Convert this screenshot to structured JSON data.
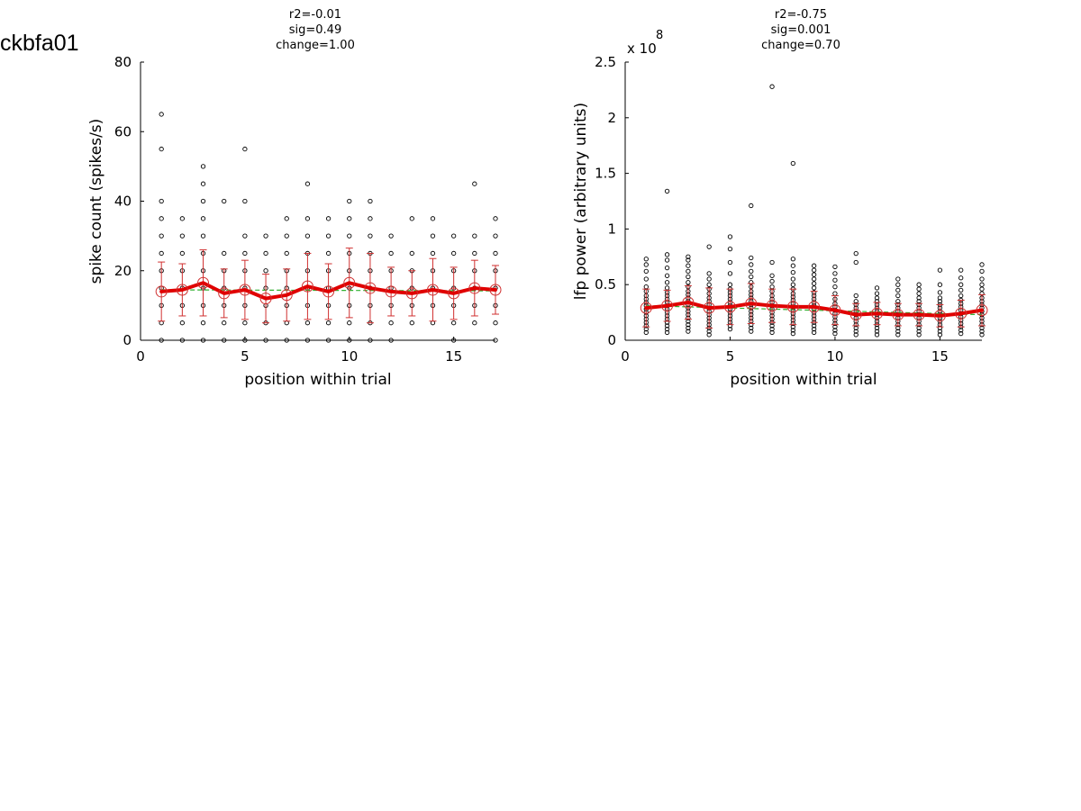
{
  "figure_title": "ckbfa01",
  "chart_data": [
    {
      "type": "scatter",
      "stats": [
        "r2=-0.01",
        "sig=0.49",
        "change=1.00"
      ],
      "xlabel": "position within trial",
      "ylabel": "spike count (spikes/s)",
      "xlim": [
        0,
        17
      ],
      "ylim": [
        0,
        80
      ],
      "xticks": [
        0,
        5,
        10,
        15
      ],
      "yticks": [
        0,
        20,
        40,
        60,
        80
      ],
      "xtick_labels": [
        "0",
        "5",
        "10",
        "15"
      ],
      "ytick_labels": [
        "0",
        "20",
        "40",
        "60",
        "80"
      ],
      "exponent_label": "",
      "raw_points": [
        {
          "x": 1,
          "ys": [
            0,
            5,
            10,
            15,
            20,
            25,
            30,
            35,
            40,
            55,
            65
          ]
        },
        {
          "x": 2,
          "ys": [
            0,
            5,
            10,
            15,
            20,
            25,
            30,
            35
          ]
        },
        {
          "x": 3,
          "ys": [
            0,
            5,
            10,
            15,
            20,
            25,
            30,
            35,
            40,
            45,
            50
          ]
        },
        {
          "x": 4,
          "ys": [
            0,
            5,
            10,
            15,
            20,
            25,
            40
          ]
        },
        {
          "x": 5,
          "ys": [
            0,
            5,
            10,
            15,
            20,
            25,
            30,
            40,
            55
          ]
        },
        {
          "x": 6,
          "ys": [
            0,
            5,
            10,
            15,
            20,
            25,
            30
          ]
        },
        {
          "x": 7,
          "ys": [
            0,
            5,
            10,
            15,
            20,
            25,
            30,
            35
          ]
        },
        {
          "x": 8,
          "ys": [
            0,
            5,
            10,
            15,
            20,
            25,
            30,
            35,
            45
          ]
        },
        {
          "x": 9,
          "ys": [
            0,
            5,
            10,
            15,
            20,
            25,
            30,
            35
          ]
        },
        {
          "x": 10,
          "ys": [
            0,
            5,
            10,
            15,
            20,
            25,
            30,
            35,
            40
          ]
        },
        {
          "x": 11,
          "ys": [
            0,
            5,
            10,
            15,
            20,
            25,
            30,
            35,
            40
          ]
        },
        {
          "x": 12,
          "ys": [
            0,
            5,
            10,
            15,
            20,
            25,
            30
          ]
        },
        {
          "x": 13,
          "ys": [
            5,
            10,
            15,
            20,
            25,
            35
          ]
        },
        {
          "x": 14,
          "ys": [
            5,
            10,
            15,
            20,
            25,
            30,
            35
          ]
        },
        {
          "x": 15,
          "ys": [
            0,
            5,
            10,
            15,
            20,
            25,
            30
          ]
        },
        {
          "x": 16,
          "ys": [
            5,
            10,
            15,
            20,
            25,
            30,
            45
          ]
        },
        {
          "x": 17,
          "ys": [
            0,
            5,
            10,
            15,
            20,
            25,
            30,
            35
          ]
        }
      ],
      "mean_series": {
        "x": [
          1,
          2,
          3,
          4,
          5,
          6,
          7,
          8,
          9,
          10,
          11,
          12,
          13,
          14,
          15,
          16,
          17
        ],
        "y": [
          14,
          14.5,
          16.5,
          13.5,
          14.5,
          12,
          13,
          15.5,
          14,
          16.5,
          15,
          14,
          13.5,
          14.5,
          13.5,
          15,
          14.5
        ],
        "err": [
          8.5,
          7.5,
          9.5,
          7,
          8.5,
          7,
          7.5,
          9.5,
          8,
          10,
          10,
          7,
          6.5,
          9,
          7.5,
          8,
          7
        ]
      },
      "fit_line": {
        "x": [
          1,
          17
        ],
        "y": [
          14.5,
          14.2
        ]
      },
      "colors": {
        "points": "#000000",
        "mean": "#e00000",
        "errorbar": "#d03030",
        "fit": "#30b030"
      }
    },
    {
      "type": "scatter",
      "stats": [
        "r2=-0.75",
        "sig=0.001",
        "change=0.70"
      ],
      "xlabel": "position within trial",
      "ylabel": "lfp power (arbitrary units)",
      "xlim": [
        0,
        17
      ],
      "ylim": [
        0,
        2.5
      ],
      "xticks": [
        0,
        5,
        10,
        15
      ],
      "yticks": [
        0,
        0.5,
        1,
        1.5,
        2,
        2.5
      ],
      "xtick_labels": [
        "0",
        "5",
        "10",
        "15"
      ],
      "ytick_labels": [
        "0",
        "0.5",
        "1",
        "1.5",
        "2",
        "2.5"
      ],
      "exponent_label": "x 10",
      "exponent_power": "8",
      "raw_points": [
        {
          "x": 1,
          "ys": [
            0.07,
            0.1,
            0.13,
            0.16,
            0.19,
            0.22,
            0.25,
            0.28,
            0.31,
            0.34,
            0.37,
            0.4,
            0.44,
            0.48,
            0.55,
            0.62,
            0.68,
            0.73
          ]
        },
        {
          "x": 2,
          "ys": [
            0.07,
            0.1,
            0.13,
            0.16,
            0.19,
            0.22,
            0.25,
            0.28,
            0.31,
            0.34,
            0.37,
            0.4,
            0.43,
            0.47,
            0.52,
            0.58,
            0.65,
            0.72,
            0.77,
            1.34
          ]
        },
        {
          "x": 3,
          "ys": [
            0.08,
            0.11,
            0.14,
            0.17,
            0.2,
            0.23,
            0.26,
            0.29,
            0.32,
            0.35,
            0.38,
            0.41,
            0.44,
            0.48,
            0.52,
            0.57,
            0.62,
            0.67,
            0.72,
            0.75
          ]
        },
        {
          "x": 4,
          "ys": [
            0.05,
            0.08,
            0.11,
            0.14,
            0.17,
            0.2,
            0.23,
            0.26,
            0.29,
            0.32,
            0.35,
            0.38,
            0.42,
            0.46,
            0.5,
            0.55,
            0.6,
            0.84
          ]
        },
        {
          "x": 5,
          "ys": [
            0.1,
            0.13,
            0.16,
            0.19,
            0.22,
            0.25,
            0.28,
            0.31,
            0.34,
            0.37,
            0.4,
            0.43,
            0.46,
            0.5,
            0.6,
            0.7,
            0.82,
            0.93
          ]
        },
        {
          "x": 6,
          "ys": [
            0.08,
            0.11,
            0.14,
            0.17,
            0.2,
            0.23,
            0.26,
            0.29,
            0.32,
            0.35,
            0.38,
            0.41,
            0.44,
            0.48,
            0.52,
            0.57,
            0.62,
            0.68,
            0.74,
            1.21
          ]
        },
        {
          "x": 7,
          "ys": [
            0.07,
            0.1,
            0.13,
            0.16,
            0.19,
            0.22,
            0.25,
            0.28,
            0.31,
            0.34,
            0.37,
            0.4,
            0.44,
            0.48,
            0.53,
            0.58,
            0.7,
            2.28
          ]
        },
        {
          "x": 8,
          "ys": [
            0.06,
            0.09,
            0.12,
            0.15,
            0.18,
            0.21,
            0.24,
            0.27,
            0.3,
            0.33,
            0.36,
            0.39,
            0.42,
            0.46,
            0.5,
            0.55,
            0.61,
            0.67,
            0.73,
            1.59
          ]
        },
        {
          "x": 9,
          "ys": [
            0.07,
            0.1,
            0.13,
            0.16,
            0.19,
            0.22,
            0.25,
            0.28,
            0.31,
            0.34,
            0.37,
            0.4,
            0.43,
            0.47,
            0.51,
            0.55,
            0.59,
            0.63,
            0.67
          ]
        },
        {
          "x": 10,
          "ys": [
            0.06,
            0.09,
            0.12,
            0.15,
            0.18,
            0.21,
            0.24,
            0.27,
            0.3,
            0.33,
            0.37,
            0.42,
            0.48,
            0.54,
            0.6,
            0.66
          ]
        },
        {
          "x": 11,
          "ys": [
            0.05,
            0.08,
            0.11,
            0.14,
            0.17,
            0.2,
            0.23,
            0.26,
            0.29,
            0.32,
            0.35,
            0.4,
            0.7,
            0.78
          ]
        },
        {
          "x": 12,
          "ys": [
            0.05,
            0.08,
            0.11,
            0.14,
            0.17,
            0.2,
            0.23,
            0.26,
            0.29,
            0.32,
            0.35,
            0.38,
            0.42,
            0.47
          ]
        },
        {
          "x": 13,
          "ys": [
            0.05,
            0.08,
            0.11,
            0.14,
            0.17,
            0.2,
            0.23,
            0.26,
            0.29,
            0.32,
            0.35,
            0.4,
            0.45,
            0.5,
            0.55
          ]
        },
        {
          "x": 14,
          "ys": [
            0.05,
            0.08,
            0.11,
            0.14,
            0.17,
            0.2,
            0.23,
            0.26,
            0.29,
            0.32,
            0.35,
            0.38,
            0.42,
            0.46,
            0.5
          ]
        },
        {
          "x": 15,
          "ys": [
            0.05,
            0.08,
            0.11,
            0.14,
            0.17,
            0.2,
            0.23,
            0.26,
            0.29,
            0.32,
            0.35,
            0.38,
            0.43,
            0.5,
            0.63
          ]
        },
        {
          "x": 16,
          "ys": [
            0.06,
            0.09,
            0.12,
            0.15,
            0.18,
            0.21,
            0.24,
            0.27,
            0.3,
            0.33,
            0.36,
            0.4,
            0.45,
            0.5,
            0.56,
            0.63
          ]
        },
        {
          "x": 17,
          "ys": [
            0.05,
            0.08,
            0.11,
            0.14,
            0.17,
            0.2,
            0.23,
            0.26,
            0.29,
            0.32,
            0.35,
            0.38,
            0.42,
            0.46,
            0.5,
            0.55,
            0.62,
            0.68
          ]
        }
      ],
      "mean_series": {
        "x": [
          1,
          2,
          3,
          4,
          5,
          6,
          7,
          8,
          9,
          10,
          11,
          12,
          13,
          14,
          15,
          16,
          17
        ],
        "y": [
          0.29,
          0.31,
          0.34,
          0.29,
          0.3,
          0.33,
          0.31,
          0.3,
          0.3,
          0.27,
          0.23,
          0.24,
          0.23,
          0.23,
          0.22,
          0.24,
          0.27
        ],
        "err": [
          0.17,
          0.14,
          0.15,
          0.18,
          0.16,
          0.18,
          0.15,
          0.16,
          0.14,
          0.13,
          0.1,
          0.1,
          0.1,
          0.1,
          0.1,
          0.12,
          0.14
        ]
      },
      "fit_line": {
        "x": [
          1,
          17
        ],
        "y": [
          0.31,
          0.23
        ]
      },
      "colors": {
        "points": "#000000",
        "mean": "#e00000",
        "errorbar": "#d03030",
        "fit": "#30b030"
      }
    }
  ]
}
